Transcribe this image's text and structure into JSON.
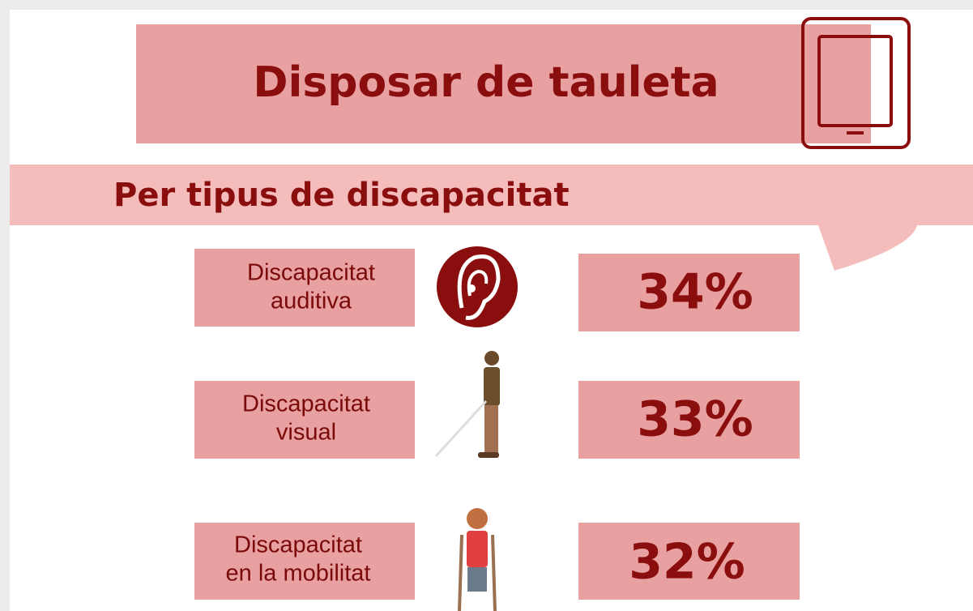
{
  "header": {
    "title": "Disposar de tauleta",
    "subtitle": "Per tipus de discapacitat"
  },
  "rows": [
    {
      "label": [
        "Discapacitat",
        "auditiva"
      ],
      "value": "34%"
    },
    {
      "label": [
        "Discapacitat",
        "visual"
      ],
      "value": "33%"
    },
    {
      "label": [
        "Discapacitat",
        "en la mobilitat"
      ],
      "value": "32%"
    }
  ]
}
